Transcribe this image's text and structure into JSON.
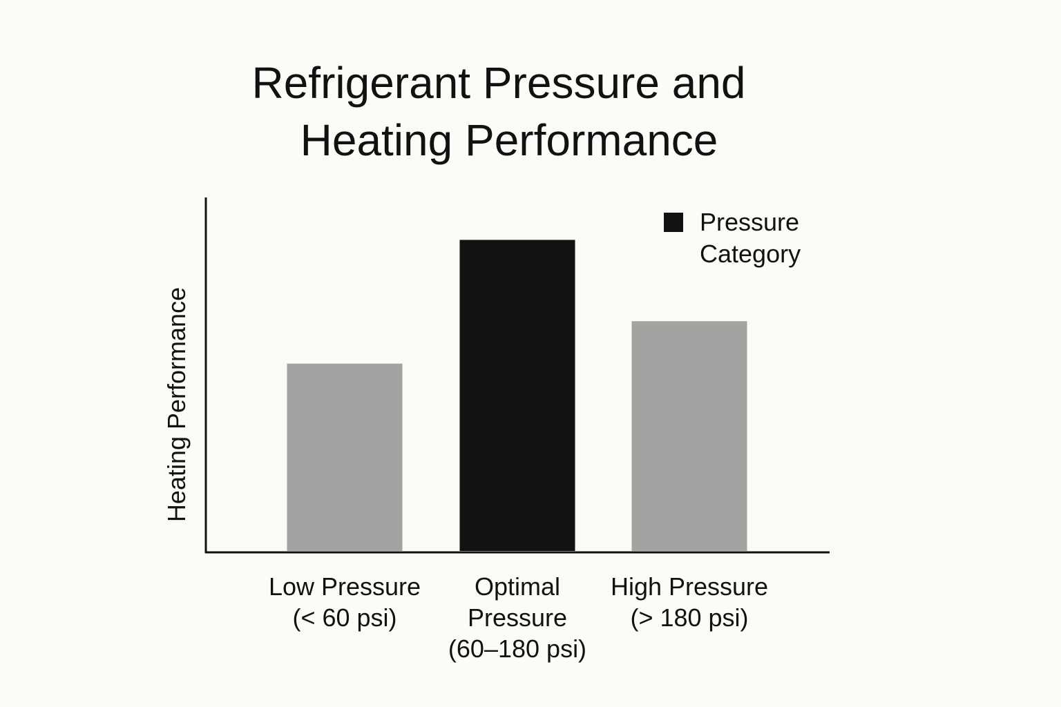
{
  "chart_data": {
    "type": "bar",
    "title_lines": [
      "Refrigerant Pressure and",
      "Heating Performance"
    ],
    "xlabel": "",
    "ylabel": "Heating Performance",
    "ylim": [
      0,
      100
    ],
    "grid": false,
    "legend": {
      "placement": "top-right",
      "label_lines": [
        "Pressure",
        "Category"
      ],
      "color": "#111111"
    },
    "categories": [
      {
        "label_lines": [
          "Low Pressure",
          "(< 60 psi)"
        ],
        "value": 53,
        "color": "#a3a3a1"
      },
      {
        "label_lines": [
          "Optimal",
          "Pressure",
          "(60–180 psi)"
        ],
        "value": 88,
        "color": "#111312"
      },
      {
        "label_lines": [
          "High Pressure",
          "(> 180 psi)"
        ],
        "value": 65,
        "color": "#a3a3a1"
      }
    ]
  }
}
